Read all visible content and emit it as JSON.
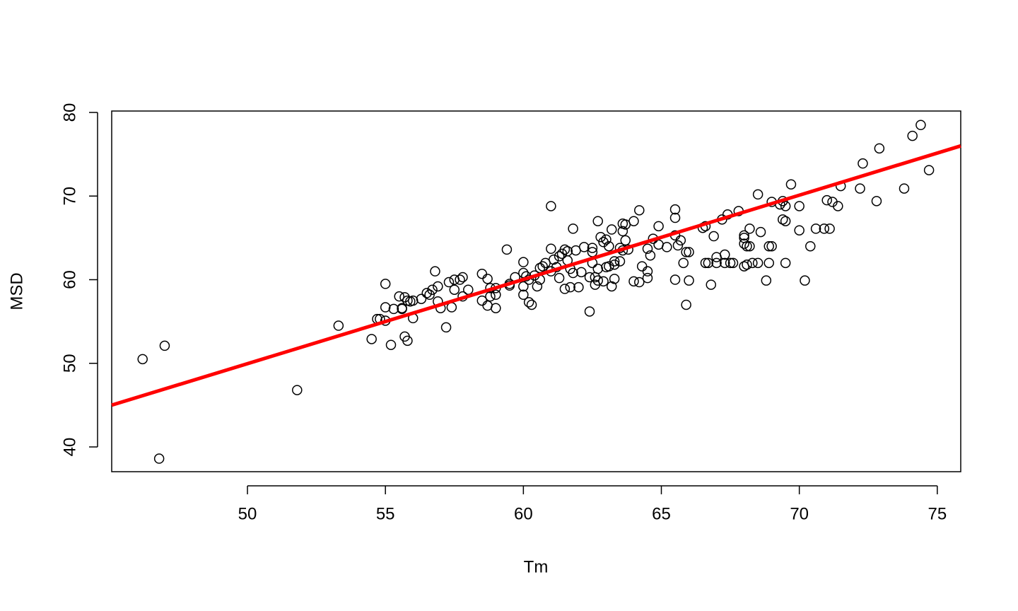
{
  "chart_data": {
    "type": "scatter",
    "xlabel": "Tm",
    "ylabel": "MSD",
    "xlim": [
      45.08,
      75.85
    ],
    "ylim": [
      37.04,
      80.17
    ],
    "xticks": [
      50,
      55,
      60,
      65,
      70,
      75
    ],
    "yticks": [
      40,
      50,
      60,
      70,
      80
    ],
    "series": [
      {
        "color": "#000000",
        "x": [
          46.2,
          47.0,
          46.8,
          51.8,
          53.3,
          54.5,
          54.7,
          54.8,
          55.0,
          55.0,
          55.0,
          55.2,
          55.3,
          55.5,
          55.6,
          55.6,
          55.7,
          55.7,
          55.8,
          55.8,
          55.9,
          56.0,
          56.0,
          56.3,
          56.5,
          56.6,
          56.7,
          56.8,
          56.9,
          56.9,
          57.0,
          57.2,
          57.3,
          57.4,
          57.5,
          57.5,
          57.7,
          57.8,
          57.8,
          58.0,
          58.5,
          58.5,
          58.7,
          58.7,
          58.8,
          58.8,
          59.0,
          59.0,
          59.0,
          59.4,
          59.5,
          59.5,
          59.7,
          60.0,
          60.0,
          60.0,
          60.0,
          60.1,
          60.2,
          60.2,
          60.3,
          60.4,
          60.5,
          60.6,
          60.6,
          60.7,
          60.8,
          61.0,
          61.0,
          61.0,
          61.1,
          61.2,
          61.3,
          61.3,
          61.4,
          61.5,
          61.5,
          61.6,
          61.6,
          61.7,
          61.7,
          61.8,
          61.8,
          61.9,
          62.0,
          62.1,
          62.2,
          62.4,
          62.4,
          62.5,
          62.5,
          62.5,
          62.6,
          62.6,
          62.7,
          62.7,
          62.7,
          62.8,
          62.9,
          62.9,
          63.0,
          63.0,
          63.1,
          63.1,
          63.2,
          63.2,
          63.3,
          63.3,
          63.3,
          63.5,
          63.5,
          63.6,
          63.6,
          63.6,
          63.7,
          63.7,
          63.8,
          64.0,
          64.0,
          64.2,
          64.2,
          64.3,
          64.5,
          64.5,
          64.5,
          64.6,
          64.7,
          64.9,
          64.9,
          65.2,
          65.5,
          65.5,
          65.5,
          65.5,
          65.6,
          65.7,
          65.8,
          65.9,
          65.9,
          66.0,
          66.0,
          66.5,
          66.6,
          66.6,
          66.7,
          66.8,
          66.9,
          67.0,
          67.0,
          67.2,
          67.3,
          67.3,
          67.4,
          67.5,
          67.6,
          67.8,
          68.0,
          68.0,
          68.0,
          68.0,
          68.1,
          68.1,
          68.2,
          68.2,
          68.3,
          68.5,
          68.5,
          68.6,
          68.8,
          68.9,
          68.9,
          69.0,
          69.0,
          69.3,
          69.4,
          69.4,
          69.5,
          69.5,
          69.5,
          69.7,
          70.0,
          70.0,
          70.2,
          70.4,
          70.6,
          70.9,
          71.0,
          71.1,
          71.2,
          71.4,
          71.5,
          72.2,
          72.3,
          72.8,
          72.9,
          73.8,
          74.1,
          74.4,
          74.7
        ],
        "values": [
          50.5,
          52.1,
          38.6,
          46.8,
          54.5,
          52.9,
          55.3,
          55.3,
          59.5,
          56.7,
          55.1,
          52.2,
          56.5,
          58.0,
          56.6,
          56.5,
          57.9,
          53.2,
          57.5,
          52.7,
          57.4,
          57.5,
          55.4,
          57.7,
          58.4,
          58.2,
          58.8,
          61.0,
          57.4,
          59.2,
          56.6,
          54.3,
          59.7,
          56.7,
          60.0,
          58.8,
          60.0,
          60.3,
          58.0,
          58.8,
          60.7,
          57.5,
          60.1,
          56.9,
          59.0,
          58.0,
          56.6,
          58.2,
          59.0,
          63.6,
          59.5,
          59.3,
          60.3,
          62.1,
          60.8,
          59.2,
          58.2,
          60.4,
          57.3,
          60.0,
          57.0,
          60.5,
          59.2,
          61.4,
          60.0,
          61.6,
          62.0,
          68.8,
          63.7,
          61.0,
          62.4,
          61.5,
          62.8,
          60.2,
          63.1,
          63.6,
          58.9,
          63.4,
          62.3,
          59.1,
          61.3,
          66.1,
          60.8,
          63.5,
          59.1,
          60.9,
          63.9,
          56.2,
          60.3,
          63.8,
          63.3,
          62.0,
          60.3,
          59.4,
          67.0,
          61.3,
          59.9,
          65.1,
          64.5,
          59.8,
          64.8,
          61.5,
          64.0,
          61.6,
          66.0,
          59.2,
          62.2,
          61.8,
          60.1,
          63.8,
          62.2,
          66.7,
          65.8,
          63.5,
          66.6,
          64.7,
          63.6,
          67.0,
          59.8,
          68.3,
          59.7,
          61.6,
          63.7,
          61.0,
          60.2,
          62.9,
          64.9,
          66.4,
          64.2,
          63.9,
          68.4,
          67.4,
          65.3,
          60.0,
          64.1,
          64.7,
          62.0,
          63.3,
          57.0,
          63.3,
          59.9,
          66.2,
          66.4,
          62.0,
          62.0,
          59.4,
          65.2,
          62.7,
          62.0,
          67.2,
          63.0,
          62.0,
          67.8,
          62.0,
          62.0,
          68.2,
          65.3,
          65.0,
          64.3,
          61.6,
          64.0,
          61.8,
          66.1,
          64.0,
          62.0,
          70.2,
          62.0,
          65.7,
          59.9,
          64.0,
          62.0,
          69.3,
          64.0,
          69.0,
          69.4,
          67.2,
          68.8,
          67.0,
          62.0,
          71.4,
          68.8,
          65.9,
          59.9,
          64.0,
          66.1,
          66.1,
          69.5,
          66.1,
          69.3,
          68.8,
          71.2,
          70.9,
          73.9,
          69.4,
          75.7,
          70.9,
          77.2,
          78.5,
          73.1
        ]
      }
    ],
    "fit_line": {
      "color": "#ff0000",
      "x": [
        45.08,
        75.85
      ],
      "values": [
        45.0,
        76.0
      ]
    }
  }
}
